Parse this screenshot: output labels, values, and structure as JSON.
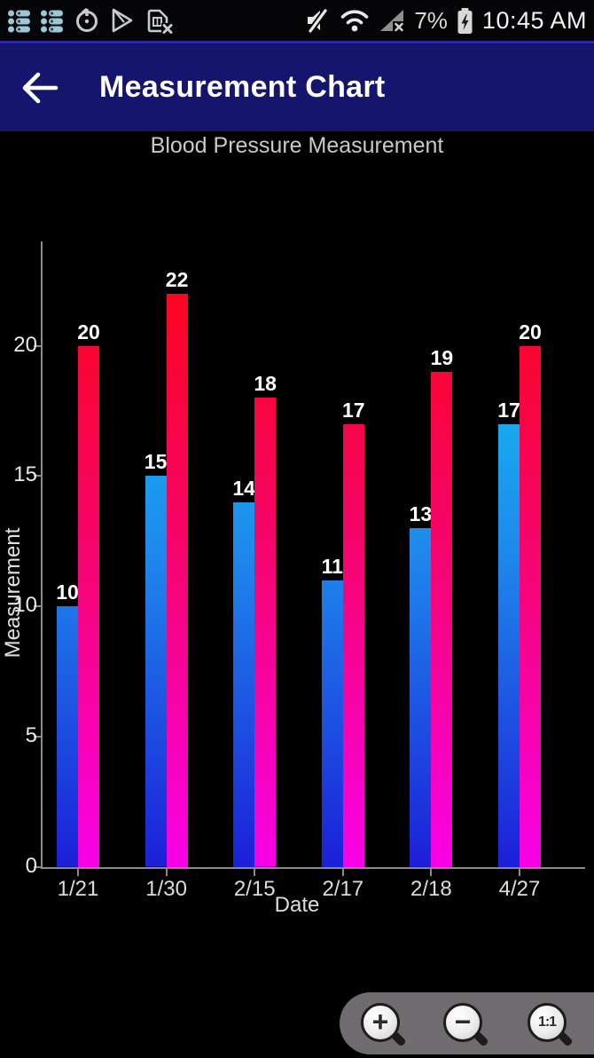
{
  "status_bar": {
    "time": "10:45 AM",
    "battery_percent": "7%",
    "icons_left": [
      "pill-list-icon",
      "pill-list-icon",
      "timer-icon",
      "play-store-icon",
      "sim-missing-icon"
    ],
    "icons_right": [
      "mute-icon",
      "wifi-icon",
      "signal-x-icon",
      "battery-charging-icon"
    ]
  },
  "header": {
    "title": "Measurement Chart",
    "back_icon": "arrow-left"
  },
  "chart_data": {
    "type": "bar",
    "title": "Blood Pressure Measurement",
    "xlabel": "Date",
    "ylabel": "Measurement",
    "categories": [
      "1/21",
      "1/30",
      "2/15",
      "2/17",
      "2/18",
      "4/27"
    ],
    "series": [
      {
        "name": "blue_bars",
        "values": [
          10,
          15,
          14,
          11,
          13,
          17
        ],
        "gradient": [
          "#1c1fd8",
          "#1e88ec",
          "#0fd7f2"
        ]
      },
      {
        "name": "red_bars",
        "values": [
          20,
          22,
          18,
          17,
          19,
          20
        ],
        "gradient": [
          "#f801e8",
          "#f5056e",
          "#fb0511"
        ]
      }
    ],
    "yticks": [
      0,
      5,
      10,
      15,
      20
    ],
    "ylim": [
      0,
      24
    ],
    "grid": false,
    "legend": false,
    "value_labels": true,
    "background": "#000000",
    "axis_color": "#8a8a8a"
  },
  "zoom_controls": {
    "buttons": [
      {
        "name": "zoom-in",
        "glyph": "+"
      },
      {
        "name": "zoom-out",
        "glyph": "−"
      },
      {
        "name": "zoom-reset",
        "glyph": "1:1"
      }
    ]
  }
}
